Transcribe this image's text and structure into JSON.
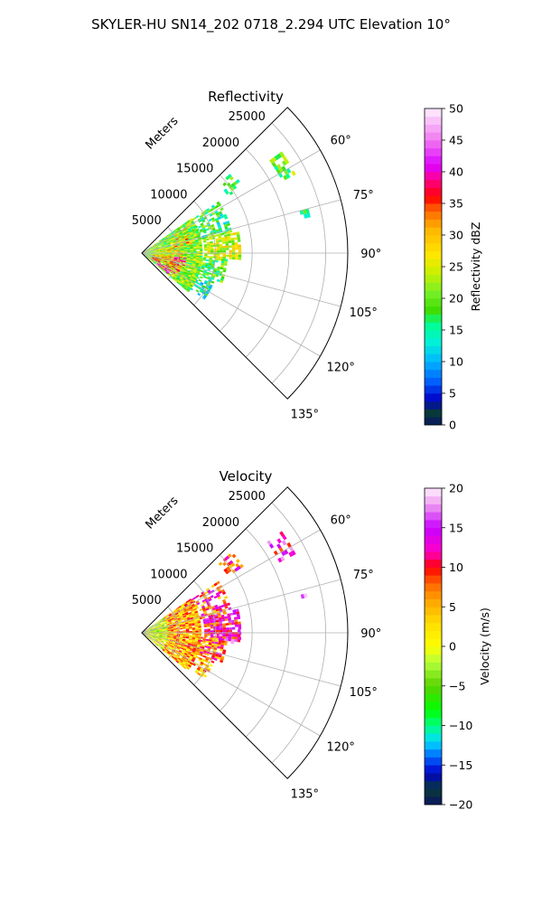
{
  "figure": {
    "title": "SKYLER-HU  SN14_202  0718_2.294 UTC Elevation 10°"
  },
  "chart_data": [
    {
      "type": "heatmap",
      "projection": "polar-sector",
      "title": "Reflectivity",
      "range_label": "Meters",
      "range_ticks": [
        5000,
        10000,
        15000,
        20000,
        25000
      ],
      "range_tick_labels": [
        "5000",
        "10000",
        "15000",
        "20000",
        "25000"
      ],
      "range_max": 28000,
      "azimuth_range": [
        45,
        135
      ],
      "azimuth_ticks": [
        60,
        75,
        90,
        105,
        120,
        135
      ],
      "azimuth_tick_labels": [
        "60°",
        "75°",
        "90°",
        "105°",
        "120°",
        "135°"
      ],
      "grid": true,
      "colorbar": {
        "label": "Reflectivity dBZ",
        "vmin": 0,
        "vmax": 50,
        "ticks": [
          0,
          5,
          10,
          15,
          20,
          25,
          30,
          35,
          40,
          45,
          50
        ],
        "tick_labels": [
          "0",
          "5",
          "10",
          "15",
          "20",
          "25",
          "30",
          "35",
          "40",
          "45",
          "50"
        ],
        "stops": [
          [
            0,
            "#0a1560"
          ],
          [
            2,
            "#083a38"
          ],
          [
            4,
            "#0000c8"
          ],
          [
            7,
            "#0064ff"
          ],
          [
            10,
            "#00b4ff"
          ],
          [
            13,
            "#00f0d8"
          ],
          [
            16,
            "#00ff90"
          ],
          [
            18,
            "#3cdc00"
          ],
          [
            21,
            "#78f028"
          ],
          [
            24,
            "#c8f000"
          ],
          [
            27,
            "#ffe600"
          ],
          [
            31,
            "#ffb400"
          ],
          [
            34,
            "#ff6400"
          ],
          [
            36,
            "#ff0000"
          ],
          [
            39,
            "#ff0096"
          ],
          [
            41,
            "#dc00ff"
          ],
          [
            45,
            "#f078f0"
          ],
          [
            50,
            "#fff0ff"
          ]
        ]
      },
      "echoes": [
        {
          "az": [
            54,
            62
          ],
          "r": [
            21000,
            23500
          ],
          "v": 20,
          "density": 0.5
        },
        {
          "az": [
            75,
            78
          ],
          "r": [
            22200,
            23200
          ],
          "v": 19,
          "density": 0.6
        },
        {
          "az": [
            48,
            56
          ],
          "r": [
            14000,
            16500
          ],
          "v": 17,
          "density": 0.45
        },
        {
          "az": [
            56,
            76
          ],
          "r": [
            8000,
            12500
          ],
          "v": 17,
          "density": 0.55
        },
        {
          "az": [
            76,
            94
          ],
          "r": [
            8500,
            13300
          ],
          "v": 24,
          "density": 0.8
        },
        {
          "az": [
            94,
            110
          ],
          "r": [
            7500,
            11500
          ],
          "v": 19,
          "density": 0.75
        },
        {
          "az": [
            110,
            126
          ],
          "r": [
            6000,
            10500
          ],
          "v": 15,
          "density": 0.55
        },
        {
          "az": [
            55,
            130
          ],
          "r": [
            300,
            8000
          ],
          "v": 21,
          "density": 0.95
        },
        {
          "az": [
            96,
            122
          ],
          "r": [
            1500,
            5600
          ],
          "v": 33,
          "density": 0.6
        },
        {
          "az": [
            74,
            104
          ],
          "r": [
            1800,
            5500
          ],
          "v": 28,
          "density": 0.5
        },
        {
          "az": [
            96,
            108
          ],
          "r": [
            4000,
            5800
          ],
          "v": 42,
          "density": 0.45
        },
        {
          "az": [
            118,
            128
          ],
          "r": [
            2500,
            4500
          ],
          "v": 40,
          "density": 0.5
        },
        {
          "az": [
            60,
            80
          ],
          "r": [
            4500,
            7000
          ],
          "v": 30,
          "density": 0.4
        }
      ]
    },
    {
      "type": "heatmap",
      "projection": "polar-sector",
      "title": "Velocity",
      "range_label": "Meters",
      "range_ticks": [
        5000,
        10000,
        15000,
        20000,
        25000
      ],
      "range_tick_labels": [
        "5000",
        "10000",
        "15000",
        "20000",
        "25000"
      ],
      "range_max": 28000,
      "azimuth_range": [
        45,
        135
      ],
      "azimuth_ticks": [
        60,
        75,
        90,
        105,
        120,
        135
      ],
      "azimuth_tick_labels": [
        "60°",
        "75°",
        "90°",
        "105°",
        "120°",
        "135°"
      ],
      "grid": true,
      "colorbar": {
        "label": "Velocity (m/s)",
        "vmin": -20,
        "vmax": 20,
        "ticks": [
          -20,
          -15,
          -10,
          -5,
          0,
          5,
          10,
          15,
          20
        ],
        "tick_labels": [
          "−20",
          "−15",
          "−10",
          "−5",
          "0",
          "5",
          "10",
          "15",
          "20"
        ],
        "stops": [
          [
            -20,
            "#0a1560"
          ],
          [
            -18,
            "#083a38"
          ],
          [
            -16,
            "#0000c8"
          ],
          [
            -14,
            "#0064ff"
          ],
          [
            -12,
            "#00dcff"
          ],
          [
            -10,
            "#00ff80"
          ],
          [
            -8,
            "#00ff00"
          ],
          [
            -5,
            "#5ad200"
          ],
          [
            -2,
            "#b4ff3c"
          ],
          [
            0,
            "#ffff00"
          ],
          [
            3,
            "#ffdc00"
          ],
          [
            6,
            "#ffa000"
          ],
          [
            8,
            "#ff6400"
          ],
          [
            10,
            "#ff0000"
          ],
          [
            12,
            "#ff00c8"
          ],
          [
            15,
            "#c800ff"
          ],
          [
            18,
            "#f09ff0"
          ],
          [
            20,
            "#fff0ff"
          ]
        ]
      },
      "echoes": [
        {
          "az": [
            54,
            62
          ],
          "r": [
            21000,
            23500
          ],
          "v": 14,
          "density": 0.5
        },
        {
          "az": [
            75,
            78
          ],
          "r": [
            22200,
            23200
          ],
          "v": 14,
          "density": 0.6
        },
        {
          "az": [
            48,
            56
          ],
          "r": [
            14000,
            16500
          ],
          "v": 9,
          "density": 0.45
        },
        {
          "az": [
            56,
            76
          ],
          "r": [
            8000,
            12500
          ],
          "v": 9,
          "density": 0.55
        },
        {
          "az": [
            76,
            94
          ],
          "r": [
            8500,
            13300
          ],
          "v": 11,
          "density": 0.8
        },
        {
          "az": [
            94,
            110
          ],
          "r": [
            7500,
            11500
          ],
          "v": 8,
          "density": 0.75
        },
        {
          "az": [
            110,
            126
          ],
          "r": [
            6000,
            10500
          ],
          "v": 5,
          "density": 0.55
        },
        {
          "az": [
            55,
            130
          ],
          "r": [
            3500,
            8000
          ],
          "v": 5,
          "density": 0.95
        },
        {
          "az": [
            55,
            130
          ],
          "r": [
            300,
            3500
          ],
          "v": 0,
          "density": 0.9
        },
        {
          "az": [
            70,
            112
          ],
          "r": [
            300,
            2500
          ],
          "v": -2,
          "density": 0.6
        },
        {
          "az": [
            88,
            96
          ],
          "r": [
            10500,
            13300
          ],
          "v": 13,
          "density": 0.6
        }
      ]
    }
  ]
}
